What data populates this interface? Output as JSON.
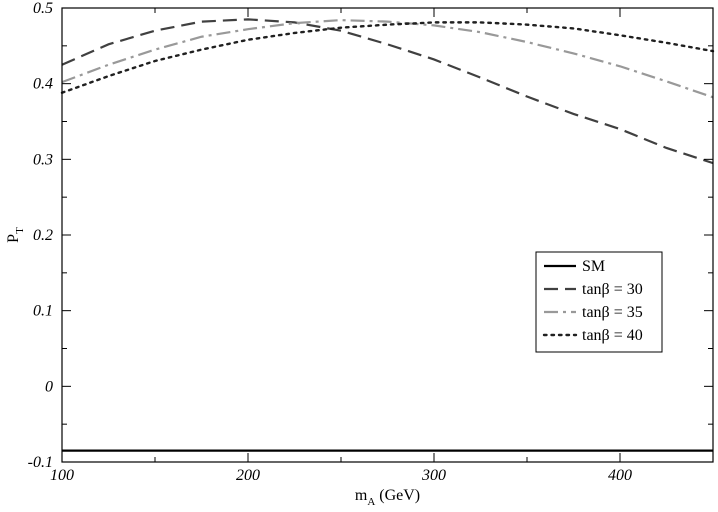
{
  "chart_data": {
    "type": "line",
    "xlabel": {
      "main": "m",
      "sub": "A",
      "rest": " (GeV)"
    },
    "ylabel": {
      "main": "P",
      "sub": "T"
    },
    "xlim": [
      100,
      450
    ],
    "ylim": [
      -0.1,
      0.5
    ],
    "xticks": [
      100,
      200,
      300,
      400
    ],
    "yticks": [
      -0.1,
      0,
      0.1,
      0.2,
      0.3,
      0.4,
      0.5
    ],
    "xtick_labels": [
      "100",
      "200",
      "300",
      "400"
    ],
    "ytick_labels": [
      "-0.1",
      "0",
      "0.1",
      "0.2",
      "0.3",
      "0.4",
      "0.5"
    ],
    "grid": false,
    "legend_position": "center-right",
    "series": [
      {
        "name": "SM",
        "style": "solid",
        "color": "#000000",
        "x": [
          100,
          450
        ],
        "y": [
          -0.085,
          -0.085
        ]
      },
      {
        "name": "tanβ = 30",
        "style": "dashed",
        "color": "#404040",
        "x": [
          100,
          125,
          150,
          175,
          200,
          225,
          250,
          275,
          300,
          325,
          350,
          375,
          400,
          425,
          450
        ],
        "y": [
          0.425,
          0.452,
          0.47,
          0.482,
          0.485,
          0.481,
          0.47,
          0.452,
          0.432,
          0.408,
          0.383,
          0.36,
          0.34,
          0.315,
          0.295
        ]
      },
      {
        "name": "tanβ = 35",
        "style": "dashdot",
        "color": "#999999",
        "x": [
          100,
          125,
          150,
          175,
          200,
          225,
          250,
          275,
          300,
          325,
          350,
          375,
          400,
          425,
          450
        ],
        "y": [
          0.402,
          0.425,
          0.445,
          0.462,
          0.472,
          0.48,
          0.484,
          0.482,
          0.477,
          0.468,
          0.455,
          0.44,
          0.423,
          0.403,
          0.382
        ]
      },
      {
        "name": "tanβ = 40",
        "style": "dotted",
        "color": "#202020",
        "x": [
          100,
          125,
          150,
          175,
          200,
          225,
          250,
          275,
          300,
          325,
          350,
          375,
          400,
          425,
          450
        ],
        "y": [
          0.388,
          0.41,
          0.43,
          0.445,
          0.458,
          0.467,
          0.474,
          0.478,
          0.481,
          0.481,
          0.478,
          0.473,
          0.464,
          0.454,
          0.443
        ]
      }
    ]
  }
}
